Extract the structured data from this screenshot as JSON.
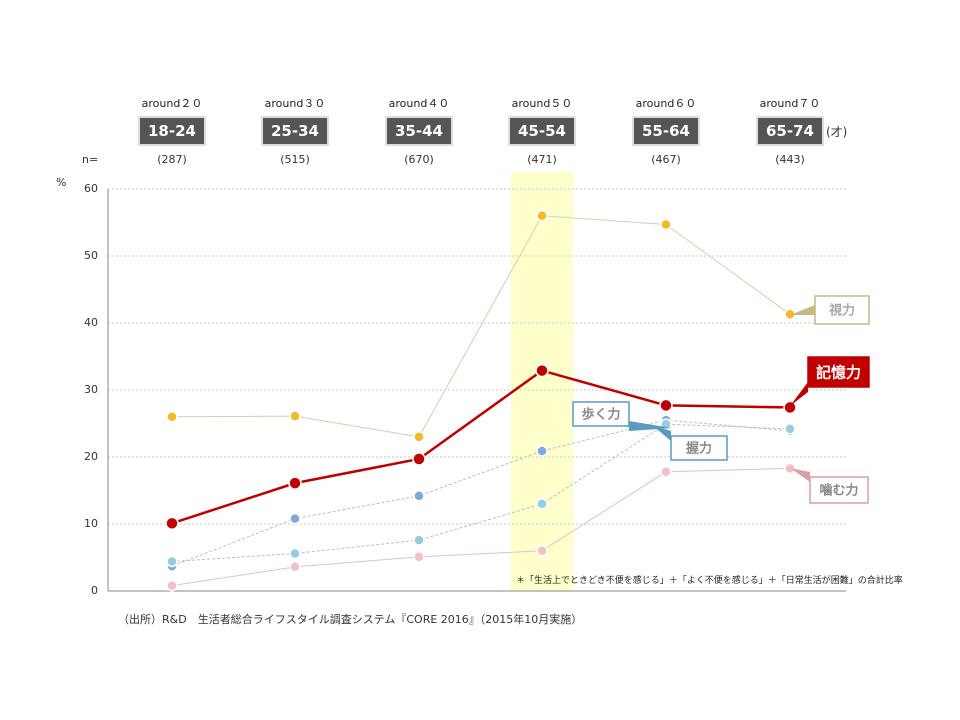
{
  "chart_data": {
    "type": "line",
    "y_unit": "%",
    "ylim": [
      0,
      60
    ],
    "y_ticks": [
      "0",
      "10",
      "20",
      "30",
      "40",
      "50",
      "60"
    ],
    "n_label": "n=",
    "age_unit": "(才)",
    "categories": [
      {
        "around": "around２０",
        "range": "18-24",
        "n": "(287)"
      },
      {
        "around": "around３０",
        "range": "25-34",
        "n": "(515)"
      },
      {
        "around": "around４０",
        "range": "35-44",
        "n": "(670)"
      },
      {
        "around": "around５０",
        "range": "45-54",
        "n": "(471)"
      },
      {
        "around": "around６０",
        "range": "55-64",
        "n": "(467)"
      },
      {
        "around": "around７０",
        "range": "65-74",
        "n": "(443)"
      }
    ],
    "highlight_category": "45-54",
    "series": [
      {
        "name": "視力",
        "values": [
          26.0,
          26.1,
          23.0,
          56.0,
          54.7,
          41.3
        ],
        "color": "#f7b825",
        "line_color": "#d9ccb5",
        "highlight": false
      },
      {
        "name": "記憶力",
        "values": [
          10.1,
          16.1,
          19.7,
          32.9,
          27.7,
          27.4
        ],
        "color": "#c00000",
        "line_color": "#c00000",
        "highlight": true
      },
      {
        "name": "歩く力",
        "values": [
          3.7,
          10.8,
          14.2,
          20.9,
          25.5,
          23.9
        ],
        "color": "#7ea9db",
        "line_color": "#bcbcbc",
        "highlight": false
      },
      {
        "name": "握力",
        "values": [
          4.4,
          5.6,
          7.6,
          13.0,
          24.9,
          24.2
        ],
        "color": "#96cbe0",
        "line_color": "#bcbcbc",
        "highlight": false
      },
      {
        "name": "噛む力",
        "values": [
          0.8,
          3.6,
          5.1,
          6.0,
          17.8,
          18.3
        ],
        "color": "#f4c0c6",
        "line_color": "#e2c1c1",
        "highlight": false
      }
    ],
    "callouts": [
      {
        "label": "視力",
        "color": "#c5b982",
        "text_color": "#a8a8a8"
      },
      {
        "label": "記憶力",
        "color": "#c00000",
        "text_color": "#ffffff"
      },
      {
        "label": "歩く力",
        "color": "#5a9bbf",
        "text_color": "#888888"
      },
      {
        "label": "握力",
        "color": "#5a9bbf",
        "text_color": "#888888"
      },
      {
        "label": "噛む力",
        "color": "#d9a0a6",
        "text_color": "#888888"
      }
    ],
    "note": "＊「生活上でときどき不便を感じる」＋「よく不便を感じる」＋「日常生活が困難」の合計比率",
    "source": "（出所）R&D　生活者総合ライフスタイル調査システム『CORE 2016』（2015年10月実施）"
  }
}
